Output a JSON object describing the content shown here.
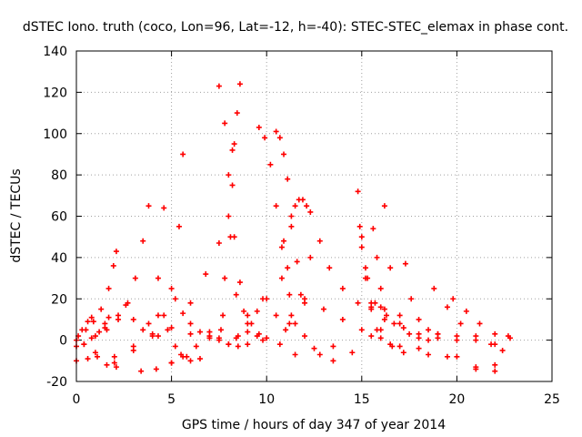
{
  "chart_data": {
    "type": "scatter",
    "title": "dSTEC Iono. truth (coco, Lon=96, Lat=-12, h=-40): STEC-STEC_elemax in phase cont.",
    "xlabel": "GPS time / hours of day 347 of year 2014",
    "ylabel": "dSTEC  / TECUs",
    "xlim": [
      0,
      25
    ],
    "ylim": [
      -20,
      140
    ],
    "xticks": [
      "0",
      "5",
      "10",
      "15",
      "20",
      "25"
    ],
    "yticks": [
      "-20",
      "0",
      "20",
      "40",
      "60",
      "80",
      "100",
      "120",
      "140"
    ],
    "grid": true,
    "marker": "+",
    "series_color": "#ff0000",
    "series": [
      {
        "x": [
          0.0,
          0.3,
          0.6,
          0.8
        ],
        "y": [
          0,
          5,
          9,
          11
        ]
      },
      {
        "x": [
          0.0,
          0.6,
          1.1,
          1.6,
          2.1
        ],
        "y": [
          -10,
          -9,
          -8,
          -12,
          -13
        ]
      },
      {
        "x": [
          0.1,
          0.5,
          0.9,
          1.3,
          1.7,
          1.95,
          2.1
        ],
        "y": [
          2,
          5,
          9,
          15,
          25,
          36,
          43
        ]
      },
      {
        "x": [
          0.0,
          0.4,
          0.8,
          1.2,
          1.5,
          1.7
        ],
        "y": [
          -3,
          -2,
          1,
          4,
          8,
          11
        ]
      },
      {
        "x": [
          0.4,
          1.0,
          1.6,
          2.2,
          2.7,
          3.1,
          3.5,
          3.8
        ],
        "y": [
          -2,
          2,
          5,
          10,
          18,
          30,
          48,
          65
        ]
      },
      {
        "x": [
          1.0,
          2.0,
          3.0,
          3.8,
          4.3,
          4.6
        ],
        "y": [
          -6,
          -8,
          -3,
          8,
          30,
          64
        ]
      },
      {
        "x": [
          1.5,
          2.2,
          2.6,
          3.0,
          3.5,
          4.0
        ],
        "y": [
          6,
          12,
          17,
          10,
          5,
          2
        ]
      },
      {
        "x": [
          2.0,
          3.0,
          4.0,
          4.6,
          5.0,
          5.4,
          5.6
        ],
        "y": [
          -11,
          -5,
          3,
          12,
          25,
          55,
          90
        ]
      },
      {
        "x": [
          3.4,
          4.2,
          5.0,
          5.5
        ],
        "y": [
          -15,
          -14,
          -11,
          -7
        ]
      },
      {
        "x": [
          4.3,
          4.8,
          5.2,
          5.6,
          6.0,
          6.5
        ],
        "y": [
          12,
          5,
          -3,
          -8,
          -10,
          -9
        ]
      },
      {
        "x": [
          5.2,
          5.6,
          6.0,
          6.5,
          7.0,
          7.5
        ],
        "y": [
          20,
          13,
          8,
          4,
          2,
          1
        ]
      },
      {
        "x": [
          5.0,
          5.8,
          6.3,
          7.0,
          7.7
        ],
        "y": [
          -11,
          -8,
          -3,
          4,
          12
        ]
      },
      {
        "x": [
          4.3,
          5.0,
          6.0,
          6.8,
          7.5
        ],
        "y": [
          2,
          6,
          18,
          32,
          47
        ]
      },
      {
        "x": [
          7.5,
          7.8,
          8.0,
          8.3,
          8.6,
          9.0,
          9.5
        ],
        "y": [
          123,
          105,
          80,
          50,
          28,
          12,
          2
        ]
      },
      {
        "x": [
          7.6,
          7.8,
          8.0,
          8.2
        ],
        "y": [
          5,
          30,
          60,
          92
        ]
      },
      {
        "x": [
          8.0,
          8.4,
          9.0,
          9.8,
          10.7,
          11.2,
          11.8,
          12.3
        ],
        "y": [
          -2,
          1,
          4,
          0,
          -2,
          8,
          22,
          40
        ]
      },
      {
        "x": [
          8.1,
          8.2,
          8.3,
          8.45,
          8.6
        ],
        "y": [
          50,
          75,
          95,
          110,
          124
        ]
      },
      {
        "x": [
          6.0,
          7.0,
          7.5,
          8.0,
          8.5,
          9.0
        ],
        "y": [
          3,
          1,
          0,
          -2,
          -3,
          -2
        ]
      },
      {
        "x": [
          8.4,
          8.8,
          9.2,
          9.6,
          10.0
        ],
        "y": [
          22,
          14,
          8,
          3,
          1
        ]
      },
      {
        "x": [
          9.8,
          10.5,
          11.0
        ],
        "y": [
          20,
          12,
          5
        ]
      },
      {
        "x": [
          8.5,
          9.0,
          9.5,
          10.0
        ],
        "y": [
          2,
          8,
          14,
          20
        ]
      },
      {
        "x": [
          9.6,
          9.9,
          10.2,
          10.5,
          10.8,
          11.2,
          11.5
        ],
        "y": [
          103,
          98,
          85,
          65,
          45,
          22,
          8
        ]
      },
      {
        "x": [
          10.5,
          10.7,
          10.9,
          11.1,
          11.3,
          11.6,
          12.0
        ],
        "y": [
          101,
          98,
          90,
          78,
          60,
          38,
          18
        ]
      },
      {
        "x": [
          10.9,
          11.1,
          11.3,
          11.5,
          11.7,
          11.9,
          12.1,
          12.3
        ],
        "y": [
          48,
          35,
          55,
          65,
          68,
          68,
          65,
          62
        ]
      },
      {
        "x": [
          10.8,
          11.3,
          12.0,
          12.8,
          13.5
        ],
        "y": [
          30,
          12,
          2,
          -7,
          -10
        ]
      },
      {
        "x": [
          11.5,
          12.5,
          13.5,
          14.5
        ],
        "y": [
          -7,
          -4,
          -3,
          -6
        ]
      },
      {
        "x": [
          12.0,
          13.0,
          14.0,
          15.0,
          16.0
        ],
        "y": [
          20,
          15,
          10,
          5,
          1
        ]
      },
      {
        "x": [
          12.8,
          13.3,
          14.0,
          14.8,
          15.5,
          16.2
        ],
        "y": [
          48,
          35,
          25,
          18,
          16,
          15
        ]
      },
      {
        "x": [
          14.8,
          15.0,
          15.2,
          15.5,
          15.8
        ],
        "y": [
          72,
          50,
          30,
          15,
          5
        ]
      },
      {
        "x": [
          14.9,
          15.2,
          15.5,
          16.0,
          16.6,
          17.2
        ],
        "y": [
          55,
          35,
          18,
          5,
          -3,
          -6
        ]
      },
      {
        "x": [
          15.0,
          15.3,
          15.7,
          16.2,
          16.7,
          17.2
        ],
        "y": [
          45,
          30,
          18,
          10,
          8,
          6
        ]
      },
      {
        "x": [
          15.6,
          15.8,
          16.0,
          16.3
        ],
        "y": [
          54,
          40,
          25,
          12
        ]
      },
      {
        "x": [
          16.2,
          16.5,
          17.0,
          17.5,
          18.0,
          18.5
        ],
        "y": [
          65,
          35,
          12,
          3,
          1,
          0
        ]
      },
      {
        "x": [
          16.0,
          17.0,
          18.0,
          19.0,
          20.0
        ],
        "y": [
          16,
          8,
          3,
          1,
          0
        ]
      },
      {
        "x": [
          17.3,
          17.6,
          18.0,
          18.5,
          19.0
        ],
        "y": [
          37,
          20,
          10,
          5,
          3
        ]
      },
      {
        "x": [
          15.5,
          17.0,
          18.5,
          20.0,
          21.0,
          22.0
        ],
        "y": [
          2,
          -3,
          -7,
          -8,
          -14,
          -15
        ]
      },
      {
        "x": [
          18.8,
          19.5,
          20.2,
          21.0,
          21.8,
          22.4
        ],
        "y": [
          25,
          16,
          8,
          2,
          -2,
          -5
        ]
      },
      {
        "x": [
          19.8,
          20.5,
          21.2,
          22.0,
          22.7
        ],
        "y": [
          20,
          14,
          8,
          3,
          2
        ]
      },
      {
        "x": [
          16.5,
          18.0,
          19.5,
          21.0,
          22.0
        ],
        "y": [
          -2,
          -4,
          -8,
          -13,
          -12
        ]
      },
      {
        "x": [
          19.0,
          20.0,
          21.0,
          22.0,
          22.8
        ],
        "y": [
          3,
          2,
          0,
          -2,
          1
        ]
      }
    ]
  }
}
